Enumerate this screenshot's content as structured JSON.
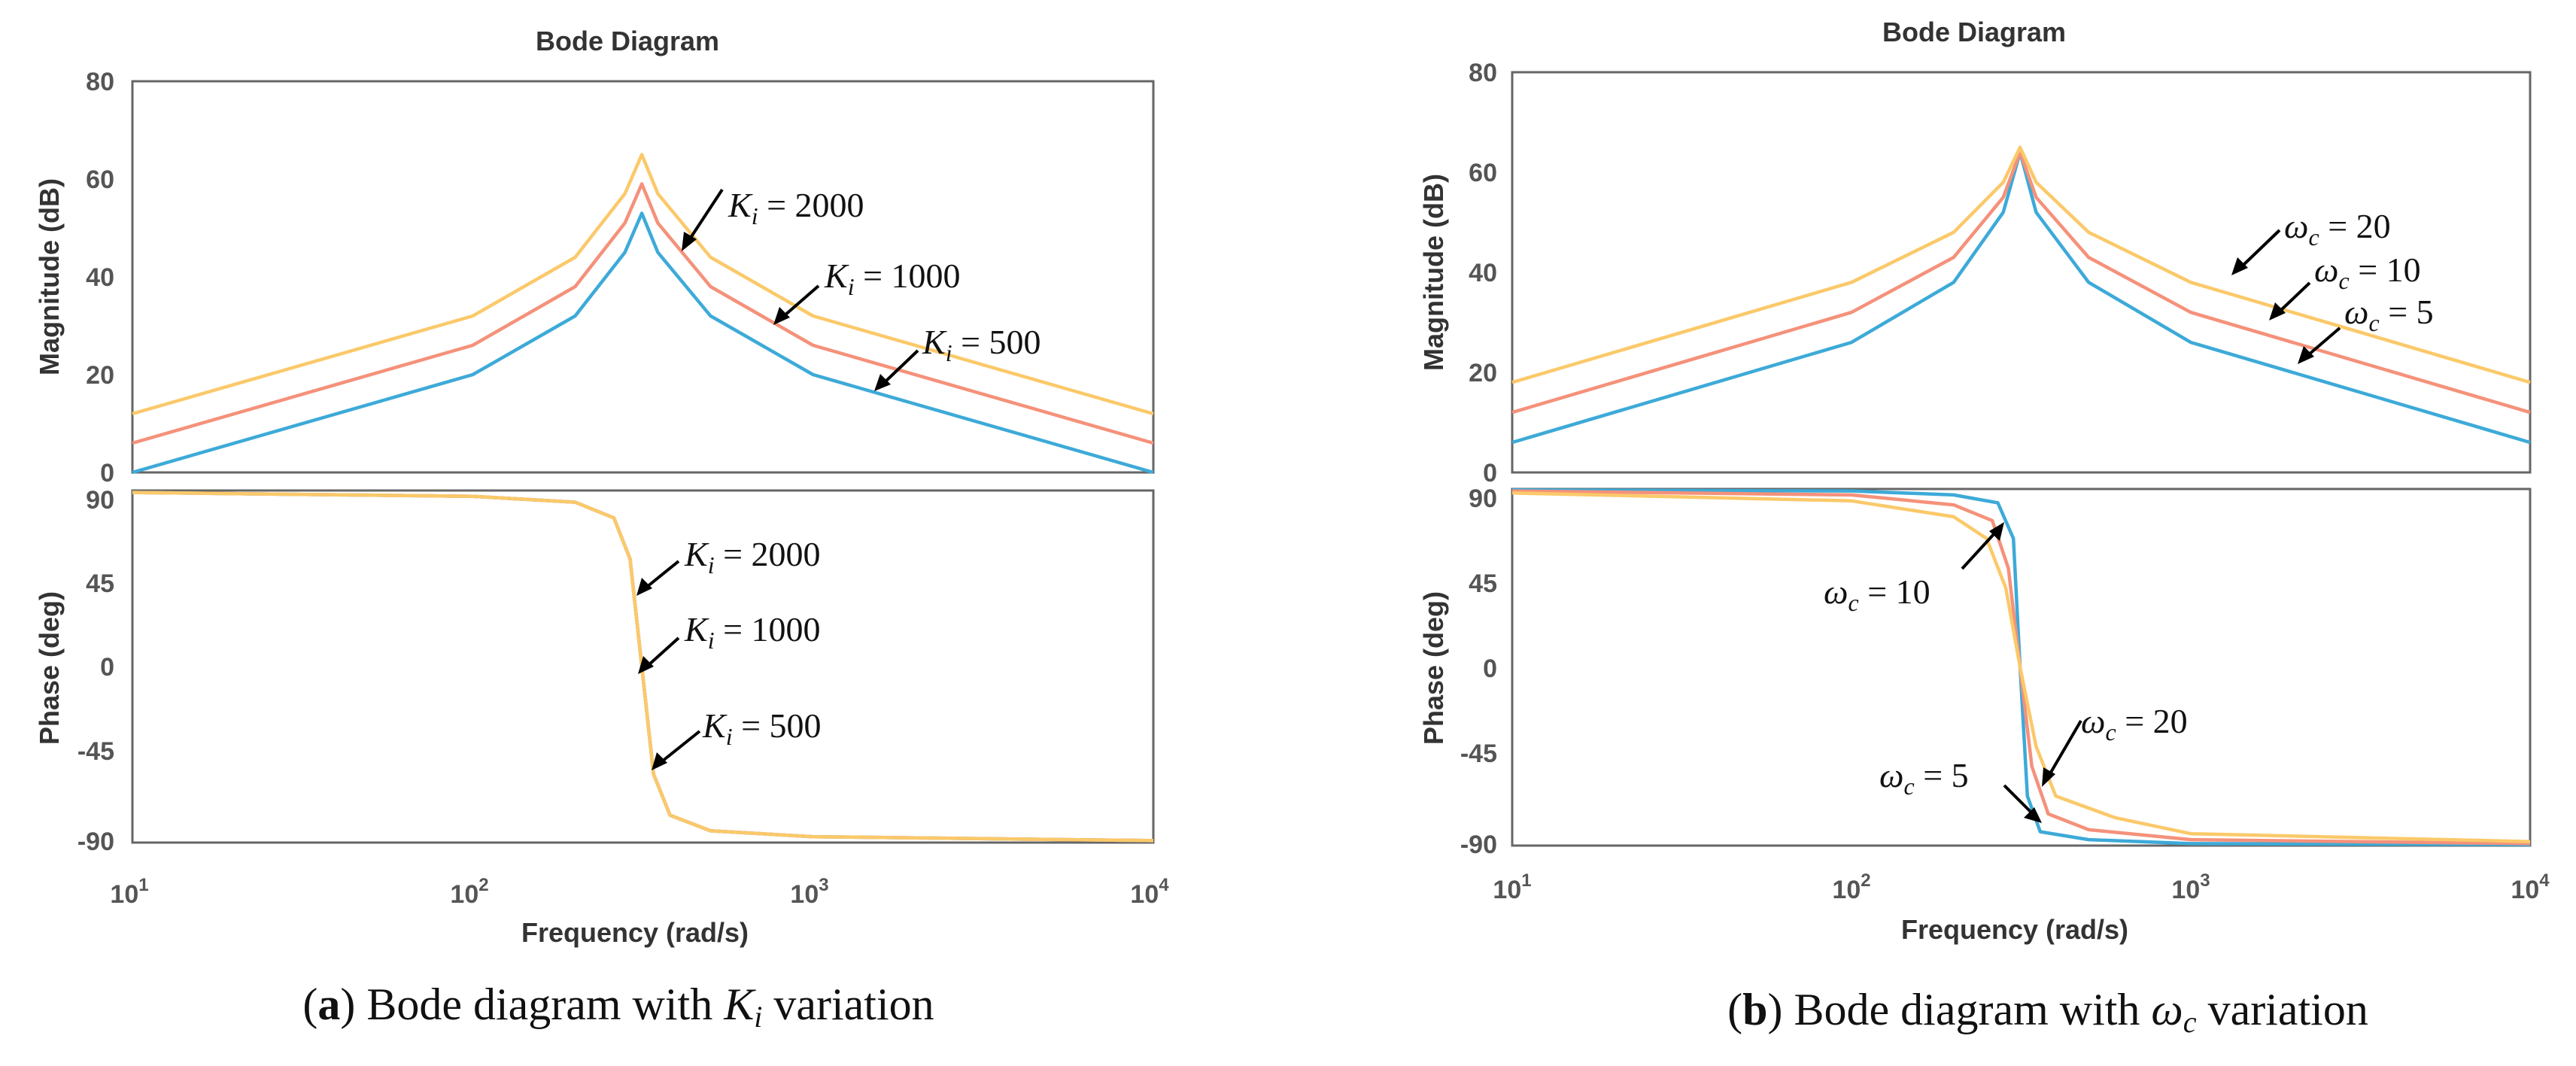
{
  "colors": {
    "series_low": "#3daad8",
    "series_mid": "#f5917a",
    "series_high": "#fbc96a"
  },
  "chart_data": [
    {
      "type": "line",
      "panel": "a",
      "title": "Bode Diagram",
      "xlabel": "Frequency (rad/s)",
      "x_scale": "log",
      "xlim": [
        10,
        10000
      ],
      "x_ticks": [
        10,
        100,
        1000,
        10000
      ],
      "x_tick_labels": [
        {
          "base": "10",
          "exp": "1"
        },
        {
          "base": "10",
          "exp": "2"
        },
        {
          "base": "10",
          "exp": "3"
        },
        {
          "base": "10",
          "exp": "4"
        }
      ],
      "caption": {
        "letter": "a",
        "text1": " Bode diagram with ",
        "sym": "K",
        "sub": "i",
        "text2": " variation"
      },
      "magnitude": {
        "ylabel": "Magnitude (dB)",
        "ylim": [
          0,
          80
        ],
        "y_ticks": [
          "0",
          "20",
          "40",
          "60",
          "80"
        ],
        "series": [
          {
            "label_sym": "K",
            "label_sub": "i",
            "label_value": " = 500",
            "color": "#3daad8",
            "points": [
              [
                10,
                0
              ],
              [
                100,
                20
              ],
              [
                200,
                32
              ],
              [
                280,
                45
              ],
              [
                314,
                53
              ],
              [
                350,
                45
              ],
              [
                500,
                32
              ],
              [
                1000,
                20
              ],
              [
                10000,
                0
              ]
            ]
          },
          {
            "label_sym": "K",
            "label_sub": "i",
            "label_value": " = 1000",
            "color": "#f5917a",
            "points": [
              [
                10,
                6
              ],
              [
                100,
                26
              ],
              [
                200,
                38
              ],
              [
                280,
                51
              ],
              [
                314,
                59
              ],
              [
                350,
                51
              ],
              [
                500,
                38
              ],
              [
                1000,
                26
              ],
              [
                10000,
                6
              ]
            ]
          },
          {
            "label_sym": "K",
            "label_sub": "i",
            "label_value": " = 2000",
            "color": "#fbc96a",
            "points": [
              [
                10,
                12
              ],
              [
                100,
                32
              ],
              [
                200,
                44
              ],
              [
                280,
                57
              ],
              [
                314,
                65
              ],
              [
                350,
                57
              ],
              [
                500,
                44
              ],
              [
                1000,
                32
              ],
              [
                10000,
                12
              ]
            ]
          }
        ]
      },
      "phase": {
        "ylabel": "Phase (deg)",
        "ylim": [
          -90,
          90
        ],
        "y_ticks": [
          "90",
          "45",
          "0",
          "-45",
          "-90"
        ],
        "series": [
          {
            "color": "#3daad8",
            "points": [
              [
                10,
                89
              ],
              [
                100,
                87
              ],
              [
                200,
                84
              ],
              [
                260,
                76
              ],
              [
                290,
                55
              ],
              [
                314,
                0
              ],
              [
                340,
                -55
              ],
              [
                380,
                -76
              ],
              [
                500,
                -84
              ],
              [
                1000,
                -87
              ],
              [
                10000,
                -89
              ]
            ]
          },
          {
            "color": "#f5917a",
            "points": [
              [
                10,
                89
              ],
              [
                100,
                87
              ],
              [
                200,
                84
              ],
              [
                260,
                76
              ],
              [
                290,
                55
              ],
              [
                314,
                0
              ],
              [
                340,
                -55
              ],
              [
                380,
                -76
              ],
              [
                500,
                -84
              ],
              [
                1000,
                -87
              ],
              [
                10000,
                -89
              ]
            ]
          },
          {
            "color": "#fbc96a",
            "points": [
              [
                10,
                89
              ],
              [
                100,
                87
              ],
              [
                200,
                84
              ],
              [
                260,
                76
              ],
              [
                290,
                55
              ],
              [
                314,
                0
              ],
              [
                340,
                -55
              ],
              [
                380,
                -76
              ],
              [
                500,
                -84
              ],
              [
                1000,
                -87
              ],
              [
                10000,
                -89
              ]
            ]
          }
        ],
        "annotations": [
          {
            "sym": "K",
            "sub": "i",
            "value": " = 2000"
          },
          {
            "sym": "K",
            "sub": "i",
            "value": " = 1000"
          },
          {
            "sym": "K",
            "sub": "i",
            "value": " = 500"
          }
        ]
      }
    },
    {
      "type": "line",
      "panel": "b",
      "title": "Bode Diagram",
      "xlabel": "Frequency (rad/s)",
      "x_scale": "log",
      "xlim": [
        10,
        10000
      ],
      "x_ticks": [
        10,
        100,
        1000,
        10000
      ],
      "x_tick_labels": [
        {
          "base": "10",
          "exp": "1"
        },
        {
          "base": "10",
          "exp": "2"
        },
        {
          "base": "10",
          "exp": "3"
        },
        {
          "base": "10",
          "exp": "4"
        }
      ],
      "caption": {
        "letter": "b",
        "text1": " Bode diagram with ",
        "sym": "ω",
        "sub": "c",
        "text2": " variation"
      },
      "magnitude": {
        "ylabel": "Magnitude (dB)",
        "ylim": [
          0,
          80
        ],
        "y_ticks": [
          "0",
          "20",
          "40",
          "60",
          "80"
        ],
        "series": [
          {
            "label_sym": "ω",
            "label_sub": "c",
            "label_value": " = 5",
            "color": "#3daad8",
            "points": [
              [
                10,
                6
              ],
              [
                100,
                26
              ],
              [
                200,
                38
              ],
              [
                280,
                52
              ],
              [
                314,
                64
              ],
              [
                350,
                52
              ],
              [
                500,
                38
              ],
              [
                1000,
                26
              ],
              [
                10000,
                6
              ]
            ]
          },
          {
            "label_sym": "ω",
            "label_sub": "c",
            "label_value": " = 10",
            "color": "#f5917a",
            "points": [
              [
                10,
                12
              ],
              [
                100,
                32
              ],
              [
                200,
                43
              ],
              [
                280,
                55
              ],
              [
                314,
                64
              ],
              [
                350,
                55
              ],
              [
                500,
                43
              ],
              [
                1000,
                32
              ],
              [
                10000,
                12
              ]
            ]
          },
          {
            "label_sym": "ω",
            "label_sub": "c",
            "label_value": " = 20",
            "color": "#fbc96a",
            "points": [
              [
                10,
                18
              ],
              [
                100,
                38
              ],
              [
                200,
                48
              ],
              [
                280,
                58
              ],
              [
                314,
                65
              ],
              [
                350,
                58
              ],
              [
                500,
                48
              ],
              [
                1000,
                38
              ],
              [
                10000,
                18
              ]
            ]
          }
        ]
      },
      "phase": {
        "ylabel": "Phase (deg)",
        "ylim": [
          -90,
          90
        ],
        "y_ticks": [
          "90",
          "45",
          "0",
          "-45",
          "-90"
        ],
        "series": [
          {
            "color": "#3daad8",
            "points": [
              [
                10,
                89.5
              ],
              [
                100,
                89
              ],
              [
                200,
                87
              ],
              [
                270,
                83
              ],
              [
                300,
                65
              ],
              [
                314,
                0
              ],
              [
                330,
                -65
              ],
              [
                360,
                -83
              ],
              [
                500,
                -87
              ],
              [
                1000,
                -89
              ],
              [
                10000,
                -89.5
              ]
            ]
          },
          {
            "color": "#f5917a",
            "points": [
              [
                10,
                89
              ],
              [
                100,
                87
              ],
              [
                200,
                82
              ],
              [
                260,
                74
              ],
              [
                290,
                50
              ],
              [
                314,
                0
              ],
              [
                340,
                -50
              ],
              [
                380,
                -74
              ],
              [
                500,
                -82
              ],
              [
                1000,
                -87
              ],
              [
                10000,
                -89
              ]
            ]
          },
          {
            "color": "#fbc96a",
            "points": [
              [
                10,
                88
              ],
              [
                100,
                84
              ],
              [
                200,
                76
              ],
              [
                250,
                65
              ],
              [
                285,
                40
              ],
              [
                314,
                0
              ],
              [
                350,
                -40
              ],
              [
                400,
                -65
              ],
              [
                600,
                -76
              ],
              [
                1000,
                -84
              ],
              [
                10000,
                -88
              ]
            ]
          }
        ],
        "annotations": [
          {
            "sym": "ω",
            "sub": "c",
            "value": " = 10"
          },
          {
            "sym": "ω",
            "sub": "c",
            "value": " = 20"
          },
          {
            "sym": "ω",
            "sub": "c",
            "value": " = 5"
          }
        ]
      }
    }
  ]
}
